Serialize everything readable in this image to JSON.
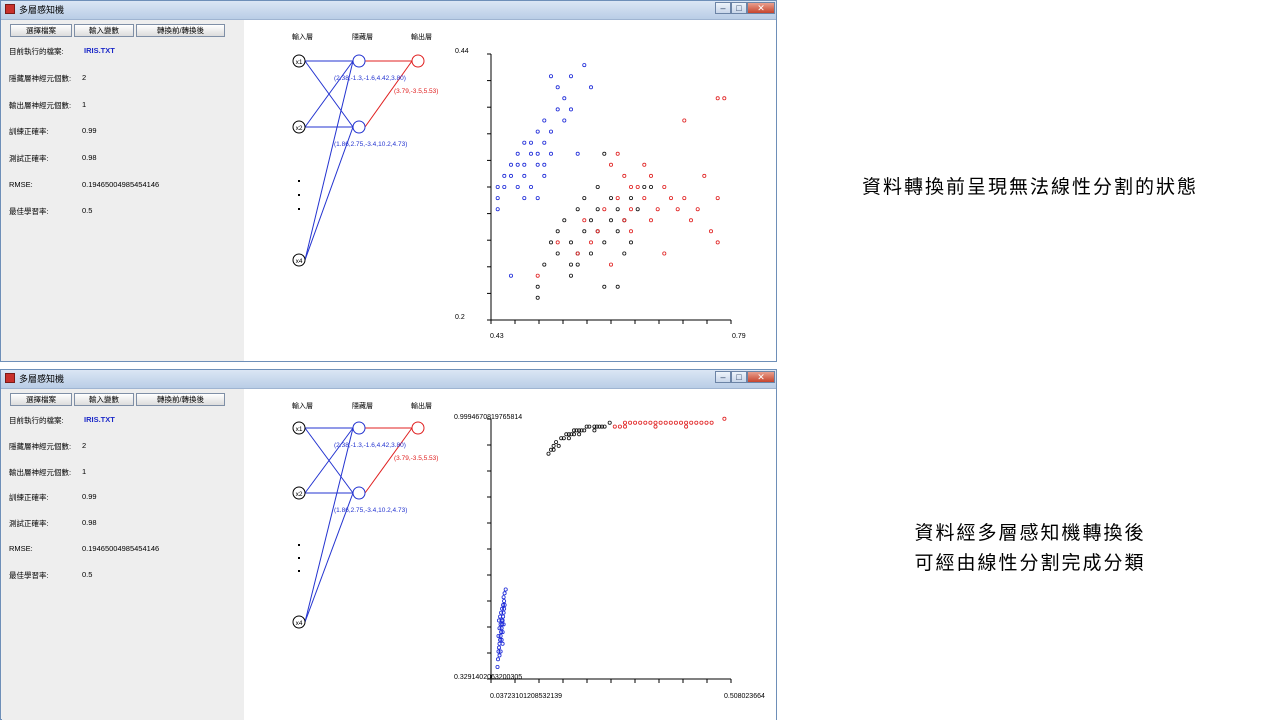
{
  "app": {
    "title": "多層感知機",
    "buttons": {
      "choose_file": "選擇檔案",
      "input_vars": "輸入變數",
      "transform": "轉換前/轉換後"
    },
    "window_controls": {
      "min": "–",
      "max": "□",
      "close": "✕"
    }
  },
  "info": {
    "file_label": "目前執行的檔案:",
    "file_value": "IRIS.TXT",
    "hidden_label": "隱藏層神經元個數:",
    "hidden_value": "2",
    "output_label": "輸出層神經元個數:",
    "output_value": "1",
    "train_label": "訓練正確率:",
    "train_value": "0.99",
    "test_label": "測試正確率:",
    "test_value": "0.98",
    "rmse_label": "RMSE:",
    "rmse_value": "0.19465004985454146",
    "lr_label": "最佳學習率:",
    "lr_value": "0.5"
  },
  "network": {
    "layer_input": "輸入層",
    "layer_hidden": "隱藏層",
    "layer_output": "輸出層",
    "nodes": [
      "x1",
      "x2",
      "x4"
    ],
    "dots": "⋮",
    "hidden1_weights": "(2.38,-1.3,-1.6,4.42,3.80)",
    "hidden2_weights": "(1.86,2.75,-3.4,10.2,4.73)",
    "output_weights": "(3.79,-3.5,5.53)"
  },
  "windows": [
    {
      "axis": {
        "ymax": "0.44",
        "ymin": "0.2",
        "xmin": "0.43",
        "xmax": "0.79"
      }
    },
    {
      "axis": {
        "ymax": "0.9994670819765814",
        "ymin": "0.3291402063200305",
        "xmin": "0.0372310120853213​9",
        "xmax": "0.508023664"
      }
    }
  ],
  "captions": {
    "before": "資料轉換前呈現無法線性分割的狀態",
    "after_line1": "資料經多層感知機轉換後",
    "after_line2": "可經由線性分割完成分類"
  },
  "colors": {
    "class_a": "#1b28d8",
    "class_b": "#111111",
    "class_c": "#e02020"
  },
  "chart_data": [
    {
      "type": "scatter",
      "title": "",
      "xlim": [
        0.43,
        0.79
      ],
      "ylim": [
        0.2,
        0.44
      ],
      "series": [
        {
          "color": "#1b28d8",
          "points": [
            [
              0.44,
              0.31
            ],
            [
              0.44,
              0.3
            ],
            [
              0.45,
              0.32
            ],
            [
              0.45,
              0.33
            ],
            [
              0.46,
              0.34
            ],
            [
              0.46,
              0.33
            ],
            [
              0.47,
              0.35
            ],
            [
              0.47,
              0.32
            ],
            [
              0.48,
              0.33
            ],
            [
              0.48,
              0.36
            ],
            [
              0.48,
              0.34
            ],
            [
              0.49,
              0.36
            ],
            [
              0.49,
              0.32
            ],
            [
              0.5,
              0.37
            ],
            [
              0.5,
              0.35
            ],
            [
              0.5,
              0.34
            ],
            [
              0.5,
              0.31
            ],
            [
              0.51,
              0.38
            ],
            [
              0.51,
              0.36
            ],
            [
              0.51,
              0.33
            ],
            [
              0.52,
              0.35
            ],
            [
              0.52,
              0.37
            ],
            [
              0.52,
              0.42
            ],
            [
              0.53,
              0.39
            ],
            [
              0.53,
              0.41
            ],
            [
              0.54,
              0.38
            ],
            [
              0.54,
              0.4
            ],
            [
              0.55,
              0.42
            ],
            [
              0.55,
              0.39
            ],
            [
              0.56,
              0.35
            ],
            [
              0.57,
              0.43
            ],
            [
              0.58,
              0.41
            ],
            [
              0.46,
              0.24
            ],
            [
              0.44,
              0.32
            ],
            [
              0.47,
              0.34
            ],
            [
              0.49,
              0.35
            ],
            [
              0.51,
              0.34
            ],
            [
              0.48,
              0.31
            ]
          ]
        },
        {
          "color": "#111111",
          "points": [
            [
              0.5,
              0.22
            ],
            [
              0.5,
              0.23
            ],
            [
              0.51,
              0.25
            ],
            [
              0.52,
              0.27
            ],
            [
              0.53,
              0.28
            ],
            [
              0.53,
              0.26
            ],
            [
              0.54,
              0.29
            ],
            [
              0.55,
              0.24
            ],
            [
              0.55,
              0.27
            ],
            [
              0.56,
              0.3
            ],
            [
              0.56,
              0.25
            ],
            [
              0.57,
              0.28
            ],
            [
              0.57,
              0.31
            ],
            [
              0.58,
              0.26
            ],
            [
              0.58,
              0.29
            ],
            [
              0.59,
              0.3
            ],
            [
              0.59,
              0.32
            ],
            [
              0.6,
              0.27
            ],
            [
              0.6,
              0.23
            ],
            [
              0.61,
              0.29
            ],
            [
              0.61,
              0.31
            ],
            [
              0.62,
              0.28
            ],
            [
              0.62,
              0.3
            ],
            [
              0.62,
              0.23
            ],
            [
              0.63,
              0.29
            ],
            [
              0.64,
              0.31
            ],
            [
              0.65,
              0.3
            ],
            [
              0.66,
              0.32
            ],
            [
              0.67,
              0.32
            ],
            [
              0.55,
              0.25
            ],
            [
              0.56,
              0.26
            ],
            [
              0.6,
              0.35
            ],
            [
              0.59,
              0.28
            ],
            [
              0.63,
              0.26
            ],
            [
              0.64,
              0.27
            ]
          ]
        },
        {
          "color": "#e02020",
          "points": [
            [
              0.5,
              0.24
            ],
            [
              0.53,
              0.27
            ],
            [
              0.56,
              0.26
            ],
            [
              0.57,
              0.29
            ],
            [
              0.58,
              0.27
            ],
            [
              0.59,
              0.28
            ],
            [
              0.6,
              0.3
            ],
            [
              0.61,
              0.34
            ],
            [
              0.62,
              0.35
            ],
            [
              0.62,
              0.31
            ],
            [
              0.63,
              0.33
            ],
            [
              0.63,
              0.29
            ],
            [
              0.64,
              0.28
            ],
            [
              0.64,
              0.3
            ],
            [
              0.65,
              0.32
            ],
            [
              0.66,
              0.34
            ],
            [
              0.66,
              0.31
            ],
            [
              0.67,
              0.33
            ],
            [
              0.67,
              0.29
            ],
            [
              0.68,
              0.3
            ],
            [
              0.69,
              0.32
            ],
            [
              0.7,
              0.31
            ],
            [
              0.71,
              0.3
            ],
            [
              0.72,
              0.38
            ],
            [
              0.72,
              0.31
            ],
            [
              0.73,
              0.29
            ],
            [
              0.74,
              0.3
            ],
            [
              0.75,
              0.33
            ],
            [
              0.76,
              0.28
            ],
            [
              0.77,
              0.4
            ],
            [
              0.78,
              0.4
            ],
            [
              0.77,
              0.31
            ],
            [
              0.77,
              0.27
            ],
            [
              0.61,
              0.25
            ],
            [
              0.69,
              0.26
            ],
            [
              0.64,
              0.32
            ]
          ]
        }
      ]
    },
    {
      "type": "scatter",
      "title": "",
      "xlim": [
        0.0372310120853213,
        0.508023664
      ],
      "ylim": [
        0.3291402063200305,
        0.9994670819765814
      ],
      "series": [
        {
          "color": "#1b28d8",
          "points": [
            [
              0.05,
              0.36
            ],
            [
              0.051,
              0.38
            ],
            [
              0.052,
              0.4
            ],
            [
              0.053,
              0.41
            ],
            [
              0.054,
              0.42
            ],
            [
              0.055,
              0.43
            ],
            [
              0.056,
              0.44
            ],
            [
              0.057,
              0.45
            ],
            [
              0.058,
              0.46
            ],
            [
              0.059,
              0.47
            ],
            [
              0.06,
              0.48
            ],
            [
              0.061,
              0.49
            ],
            [
              0.062,
              0.5
            ],
            [
              0.063,
              0.51
            ],
            [
              0.064,
              0.52
            ],
            [
              0.052,
              0.44
            ],
            [
              0.054,
              0.46
            ],
            [
              0.056,
              0.47
            ],
            [
              0.058,
              0.48
            ],
            [
              0.06,
              0.45
            ],
            [
              0.062,
              0.47
            ],
            [
              0.055,
              0.49
            ],
            [
              0.057,
              0.5
            ],
            [
              0.059,
              0.51
            ],
            [
              0.061,
              0.52
            ],
            [
              0.063,
              0.53
            ],
            [
              0.053,
              0.48
            ],
            [
              0.058,
              0.43
            ],
            [
              0.06,
              0.42
            ],
            [
              0.056,
              0.4
            ],
            [
              0.064,
              0.55
            ],
            [
              0.066,
              0.56
            ],
            [
              0.062,
              0.54
            ],
            [
              0.054,
              0.39
            ]
          ]
        },
        {
          "color": "#111111",
          "points": [
            [
              0.15,
              0.91
            ],
            [
              0.155,
              0.92
            ],
            [
              0.16,
              0.93
            ],
            [
              0.165,
              0.94
            ],
            [
              0.17,
              0.93
            ],
            [
              0.175,
              0.95
            ],
            [
              0.18,
              0.95
            ],
            [
              0.185,
              0.96
            ],
            [
              0.19,
              0.96
            ],
            [
              0.195,
              0.96
            ],
            [
              0.2,
              0.97
            ],
            [
              0.205,
              0.97
            ],
            [
              0.21,
              0.97
            ],
            [
              0.215,
              0.97
            ],
            [
              0.22,
              0.97
            ],
            [
              0.225,
              0.98
            ],
            [
              0.23,
              0.98
            ],
            [
              0.24,
              0.98
            ],
            [
              0.245,
              0.98
            ],
            [
              0.25,
              0.98
            ],
            [
              0.255,
              0.98
            ],
            [
              0.26,
              0.98
            ],
            [
              0.2,
              0.96
            ],
            [
              0.21,
              0.96
            ],
            [
              0.19,
              0.95
            ],
            [
              0.24,
              0.97
            ],
            [
              0.27,
              0.99
            ],
            [
              0.16,
              0.92
            ]
          ]
        },
        {
          "color": "#e02020",
          "points": [
            [
              0.28,
              0.98
            ],
            [
              0.29,
              0.98
            ],
            [
              0.3,
              0.98
            ],
            [
              0.31,
              0.99
            ],
            [
              0.32,
              0.99
            ],
            [
              0.33,
              0.99
            ],
            [
              0.34,
              0.99
            ],
            [
              0.35,
              0.99
            ],
            [
              0.36,
              0.99
            ],
            [
              0.37,
              0.99
            ],
            [
              0.38,
              0.99
            ],
            [
              0.39,
              0.99
            ],
            [
              0.4,
              0.99
            ],
            [
              0.41,
              0.99
            ],
            [
              0.42,
              0.99
            ],
            [
              0.43,
              0.99
            ],
            [
              0.44,
              0.99
            ],
            [
              0.45,
              0.99
            ],
            [
              0.46,
              0.99
            ],
            [
              0.47,
              0.99
            ],
            [
              0.495,
              1.0
            ],
            [
              0.3,
              0.99
            ],
            [
              0.36,
              0.98
            ],
            [
              0.42,
              0.98
            ]
          ]
        }
      ]
    }
  ]
}
